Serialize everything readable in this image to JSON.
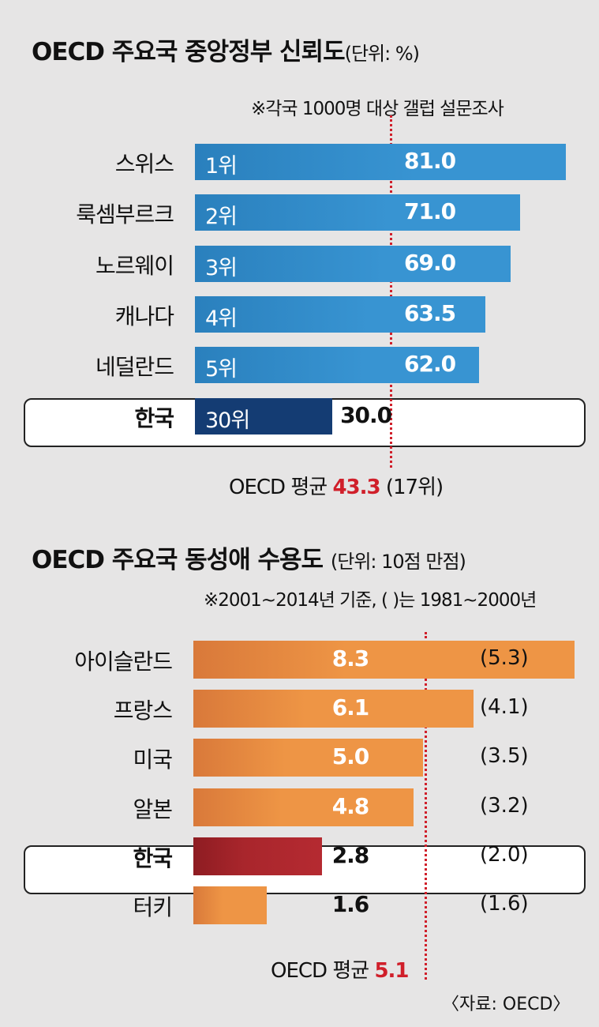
{
  "colors": {
    "trust_bar": "#3894d2",
    "trust_korea_bar": "#143c73",
    "accept_bar": "#ee9545",
    "accept_korea_bar": "#a9262c",
    "avg_line": "#d01f2a"
  },
  "chart_data": [
    {
      "type": "bar",
      "orientation": "horizontal",
      "title": "OECD 주요국 중앙정부 신뢰도",
      "unit": "(단위: %)",
      "note": "※각국 1000명 대상 갤럽 설문조사",
      "categories": [
        "스위스",
        "룩셈부르크",
        "노르웨이",
        "캐나다",
        "네덜란드",
        "한국"
      ],
      "ranks": [
        "1위",
        "2위",
        "3위",
        "4위",
        "5위",
        "30위"
      ],
      "values": [
        81.0,
        71.0,
        69.0,
        63.5,
        62.0,
        30.0
      ],
      "value_labels": [
        "81.0",
        "71.0",
        "69.0",
        "63.5",
        "62.0",
        "30.0"
      ],
      "highlight": "한국",
      "average": {
        "label": "OECD 평균",
        "value": 43.3,
        "value_label": "43.3",
        "rank_label": "(17위)"
      },
      "xlim": [
        0,
        81
      ]
    },
    {
      "type": "bar",
      "orientation": "horizontal",
      "title": "OECD 주요국 동성애 수용도",
      "unit": "(단위: 10점 만점)",
      "note": "※2001~2014년 기준, (  )는 1981~2000년",
      "categories": [
        "아이슬란드",
        "프랑스",
        "미국",
        "알본",
        "한국",
        "터키"
      ],
      "values": [
        8.3,
        6.1,
        5.0,
        4.8,
        2.8,
        1.6
      ],
      "value_labels": [
        "8.3",
        "6.1",
        "5.0",
        "4.8",
        "2.8",
        "1.6"
      ],
      "previous_labels": [
        "(5.3)",
        "(4.1)",
        "(3.5)",
        "(3.2)",
        "(2.0)",
        "(1.6)"
      ],
      "highlight": "한국",
      "average": {
        "label": "OECD 평균",
        "value": 5.1,
        "value_label": "5.1"
      },
      "xlim": [
        0,
        8.3
      ]
    }
  ],
  "source": "〈자료: OECD〉"
}
